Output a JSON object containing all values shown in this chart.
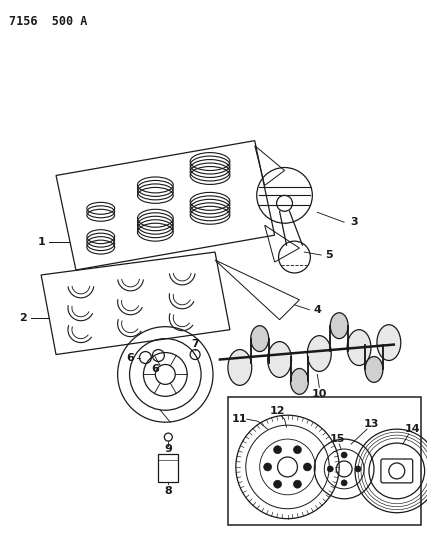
{
  "title_code": "7156  500 A",
  "bg_color": "#ffffff",
  "line_color": "#1a1a1a",
  "fig_width": 4.28,
  "fig_height": 5.33,
  "dpi": 100
}
